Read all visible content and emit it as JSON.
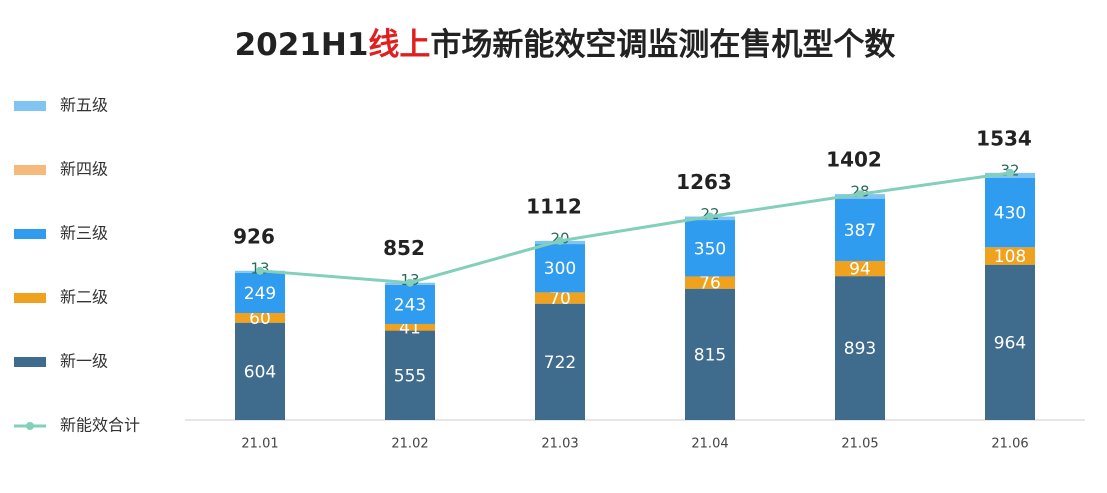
{
  "chart_data": {
    "type": "bar",
    "stacked": true,
    "title": [
      "2021H1",
      "线上",
      "市场新能效空调监测在售机型个数"
    ],
    "title_highlight_color": "#e02020",
    "categories": [
      "21.01",
      "21.02",
      "21.03",
      "21.04",
      "21.05",
      "21.06"
    ],
    "ylim": [
      0,
      1800
    ],
    "legend": "left",
    "series": [
      {
        "name": "新一级",
        "color": "#3f6b8c",
        "values": [
          604,
          555,
          722,
          815,
          893,
          964
        ]
      },
      {
        "name": "新二级",
        "color": "#f0a21f",
        "values": [
          60,
          41,
          70,
          76,
          94,
          108
        ]
      },
      {
        "name": "新三级",
        "color": "#2f9cf0",
        "values": [
          249,
          243,
          300,
          350,
          387,
          430
        ]
      },
      {
        "name": "新四级",
        "color": "#f5b97c",
        "values": [
          0,
          0,
          0,
          0,
          0,
          0
        ]
      },
      {
        "name": "新五级",
        "color": "#80c4f2",
        "values": [
          13,
          13,
          20,
          22,
          28,
          32
        ]
      },
      {
        "name": "新能效合计",
        "type": "line",
        "color": "#82d0b9",
        "values": [
          926,
          852,
          1112,
          1263,
          1402,
          1534
        ]
      }
    ]
  }
}
